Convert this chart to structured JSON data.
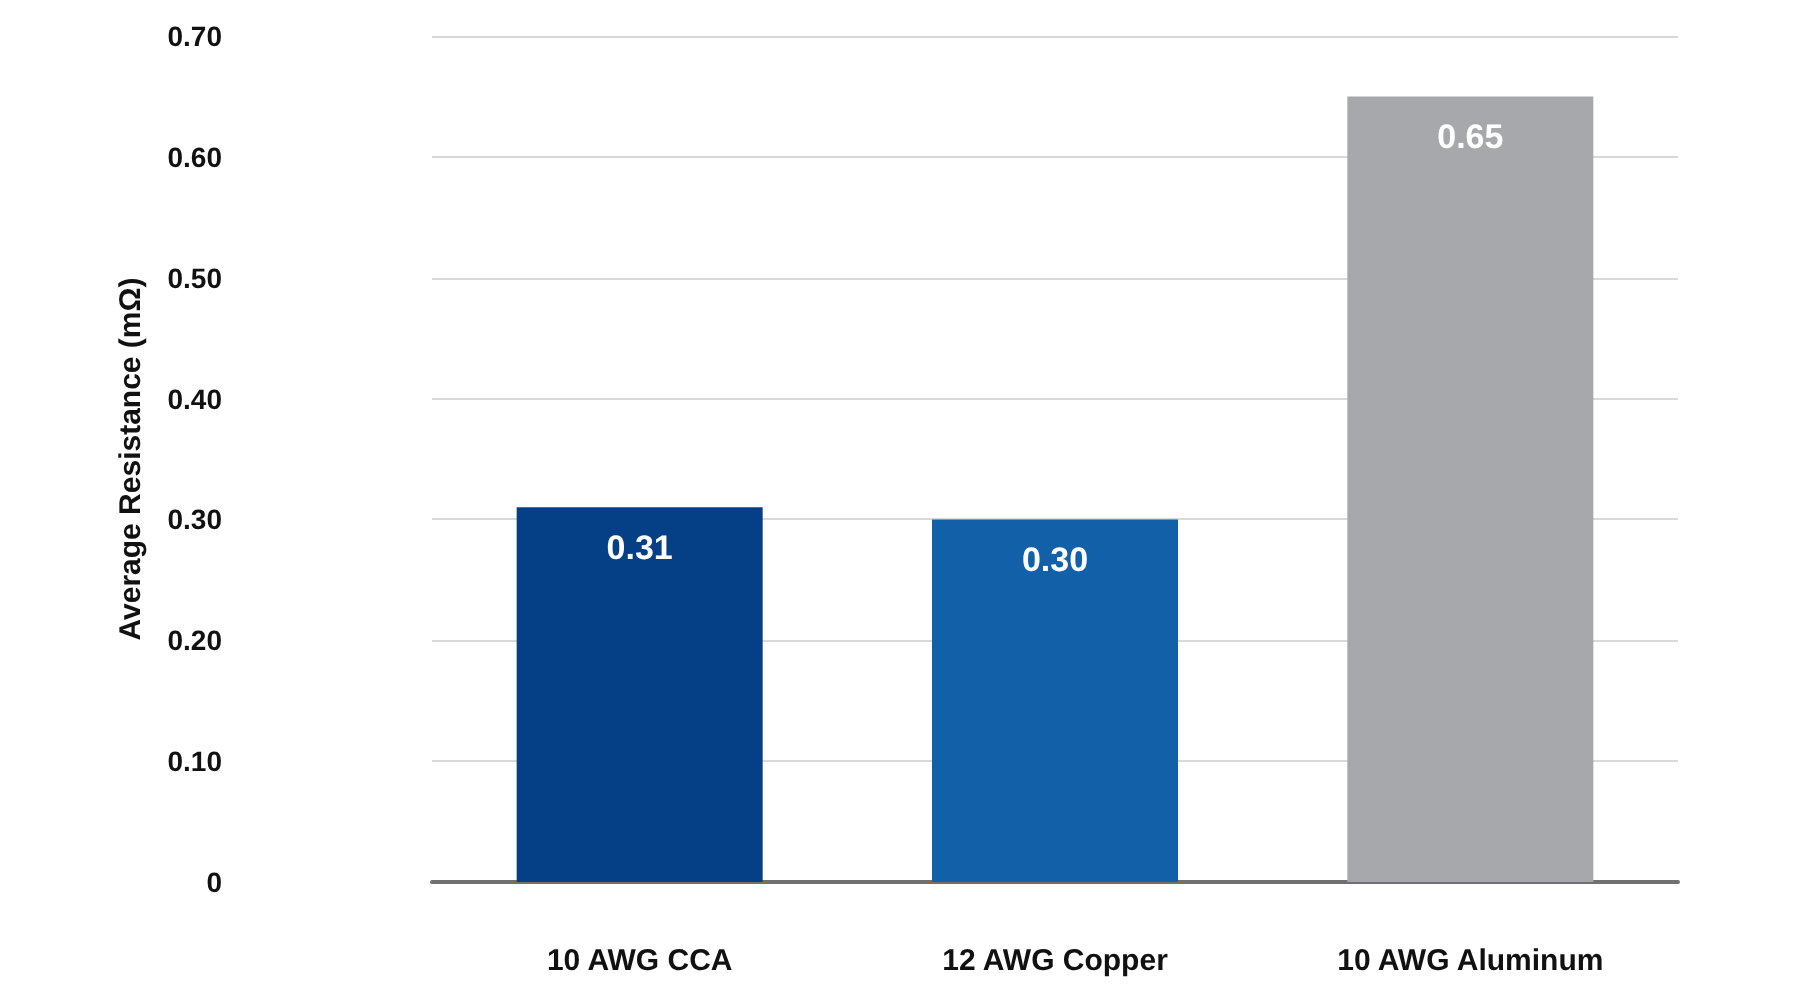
{
  "chart_data": {
    "type": "bar",
    "ylabel": "Average Resistance (mΩ)",
    "categories": [
      "10 AWG CCA",
      "12 AWG Copper",
      "10 AWG Aluminum"
    ],
    "values": [
      0.31,
      0.3,
      0.65
    ],
    "value_labels": [
      "0.31",
      "0.30",
      "0.65"
    ],
    "colors": [
      "#053f85",
      "#1261a8",
      "#a7a8ab"
    ],
    "ylim": [
      0,
      0.7
    ],
    "yticks": [
      0,
      {
        "value": 0.1,
        "label": "0.10"
      },
      {
        "value": 0.2,
        "label": "0.20"
      },
      {
        "value": 0.3,
        "label": "0.30"
      },
      {
        "value": 0.4,
        "label": "0.40"
      },
      {
        "value": 0.5,
        "label": "0.50"
      },
      {
        "value": 0.6,
        "label": "0.60"
      },
      {
        "value": 0.7,
        "label": "0.70"
      }
    ],
    "grid": "y"
  }
}
